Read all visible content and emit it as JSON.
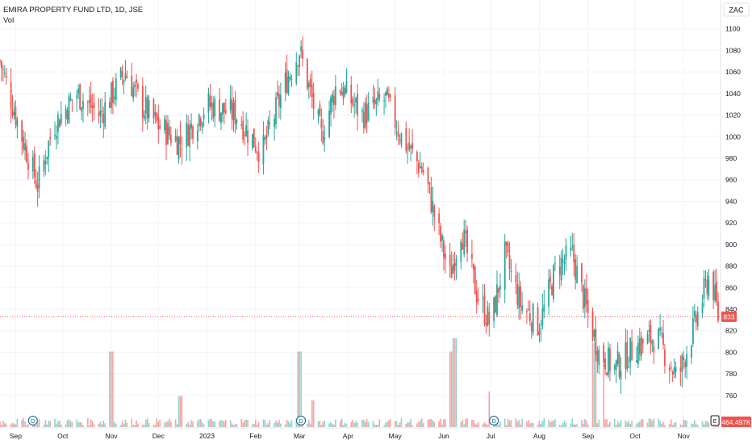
{
  "header": {
    "symbol_line": "EMIRA PROPERTY FUND LTD, 1D, JSE",
    "volume_label": "Vol"
  },
  "currency_badge": "ZAC",
  "price_tag": "833",
  "volume_tag": "464.497K",
  "event_markers": [
    {
      "glyph": "D",
      "x": "2022-09-12"
    },
    {
      "glyph": "D",
      "x": "2023-03-02"
    },
    {
      "glyph": "D",
      "x": "2023-07-03"
    },
    {
      "glyph": "E",
      "x": "2023-11-21"
    }
  ],
  "colors": {
    "up": "#26a69a",
    "down": "#ef5350",
    "up_volume": "#8fd3ca",
    "down_volume": "#f5a3a1",
    "grid": "#f0f3fa",
    "axis_text": "#131722",
    "last_price_line": "#ef5350"
  },
  "chart_data": {
    "type": "candlestick",
    "title": "EMIRA PROPERTY FUND LTD, 1D, JSE",
    "currency": "ZAC",
    "x_range": [
      "2022-08-22",
      "2023-11-23"
    ],
    "y_range": [
      740,
      1110
    ],
    "y_ticks": [
      760,
      780,
      800,
      820,
      840,
      860,
      880,
      900,
      920,
      940,
      960,
      980,
      1000,
      1020,
      1040,
      1060,
      1080,
      1100
    ],
    "x_tick_labels": [
      {
        "label": "Sep",
        "date": "2022-09-01"
      },
      {
        "label": "Oct",
        "date": "2022-10-01"
      },
      {
        "label": "Nov",
        "date": "2022-11-01"
      },
      {
        "label": "Dec",
        "date": "2022-12-01"
      },
      {
        "label": "2023",
        "date": "2023-01-01"
      },
      {
        "label": "Feb",
        "date": "2023-02-01"
      },
      {
        "label": "Mar",
        "date": "2023-03-01"
      },
      {
        "label": "Apr",
        "date": "2023-04-01"
      },
      {
        "label": "May",
        "date": "2023-05-01"
      },
      {
        "label": "Jun",
        "date": "2023-06-01"
      },
      {
        "label": "Jul",
        "date": "2023-07-01"
      },
      {
        "label": "Aug",
        "date": "2023-08-01"
      },
      {
        "label": "Sep",
        "date": "2023-09-01"
      },
      {
        "label": "Oct",
        "date": "2023-10-01"
      },
      {
        "label": "Nov",
        "date": "2023-11-01"
      }
    ],
    "last_price": 833,
    "grid": true,
    "series": [
      {
        "name": "Price",
        "kind": "ohlc",
        "anchors": [
          {
            "date": "2022-08-22",
            "close": 1070
          },
          {
            "date": "2022-09-05",
            "close": 1000
          },
          {
            "date": "2022-09-15",
            "close": 955
          },
          {
            "date": "2022-09-25",
            "close": 1010
          },
          {
            "date": "2022-10-10",
            "close": 1040
          },
          {
            "date": "2022-10-25",
            "close": 1020
          },
          {
            "date": "2022-11-10",
            "close": 1060
          },
          {
            "date": "2022-11-20",
            "close": 1030
          },
          {
            "date": "2022-12-01",
            "close": 1010
          },
          {
            "date": "2022-12-15",
            "close": 995
          },
          {
            "date": "2023-01-01",
            "close": 1030
          },
          {
            "date": "2023-01-20",
            "close": 1020
          },
          {
            "date": "2023-02-05",
            "close": 985
          },
          {
            "date": "2023-02-20",
            "close": 1050
          },
          {
            "date": "2023-03-01",
            "close": 1080
          },
          {
            "date": "2023-03-15",
            "close": 1000
          },
          {
            "date": "2023-03-25",
            "close": 1050
          },
          {
            "date": "2023-04-10",
            "close": 1020
          },
          {
            "date": "2023-04-25",
            "close": 1035
          },
          {
            "date": "2023-05-05",
            "close": 1000
          },
          {
            "date": "2023-05-20",
            "close": 965
          },
          {
            "date": "2023-05-28",
            "close": 915
          },
          {
            "date": "2023-06-05",
            "close": 870
          },
          {
            "date": "2023-06-12",
            "close": 915
          },
          {
            "date": "2023-06-22",
            "close": 855
          },
          {
            "date": "2023-07-01",
            "close": 825
          },
          {
            "date": "2023-07-10",
            "close": 890
          },
          {
            "date": "2023-07-20",
            "close": 845
          },
          {
            "date": "2023-08-01",
            "close": 825
          },
          {
            "date": "2023-08-12",
            "close": 880
          },
          {
            "date": "2023-08-22",
            "close": 890
          },
          {
            "date": "2023-08-31",
            "close": 840
          },
          {
            "date": "2023-09-08",
            "close": 800
          },
          {
            "date": "2023-09-18",
            "close": 785
          },
          {
            "date": "2023-10-01",
            "close": 805
          },
          {
            "date": "2023-10-15",
            "close": 815
          },
          {
            "date": "2023-10-28",
            "close": 775
          },
          {
            "date": "2023-11-08",
            "close": 825
          },
          {
            "date": "2023-11-18",
            "close": 875
          },
          {
            "date": "2023-11-23",
            "close": 833
          }
        ]
      },
      {
        "name": "Vol",
        "kind": "volume",
        "spikes": [
          {
            "date": "2022-11-01",
            "level": 0.85
          },
          {
            "date": "2022-12-15",
            "level": 0.35
          },
          {
            "date": "2023-03-01",
            "level": 0.85
          },
          {
            "date": "2023-03-10",
            "level": 0.3
          },
          {
            "date": "2023-06-05",
            "level": 0.85
          },
          {
            "date": "2023-06-08",
            "level": 1.0
          },
          {
            "date": "2023-07-01",
            "level": 0.4
          },
          {
            "date": "2023-09-05",
            "level": 0.95
          },
          {
            "date": "2023-09-10",
            "level": 0.7
          }
        ]
      }
    ]
  }
}
